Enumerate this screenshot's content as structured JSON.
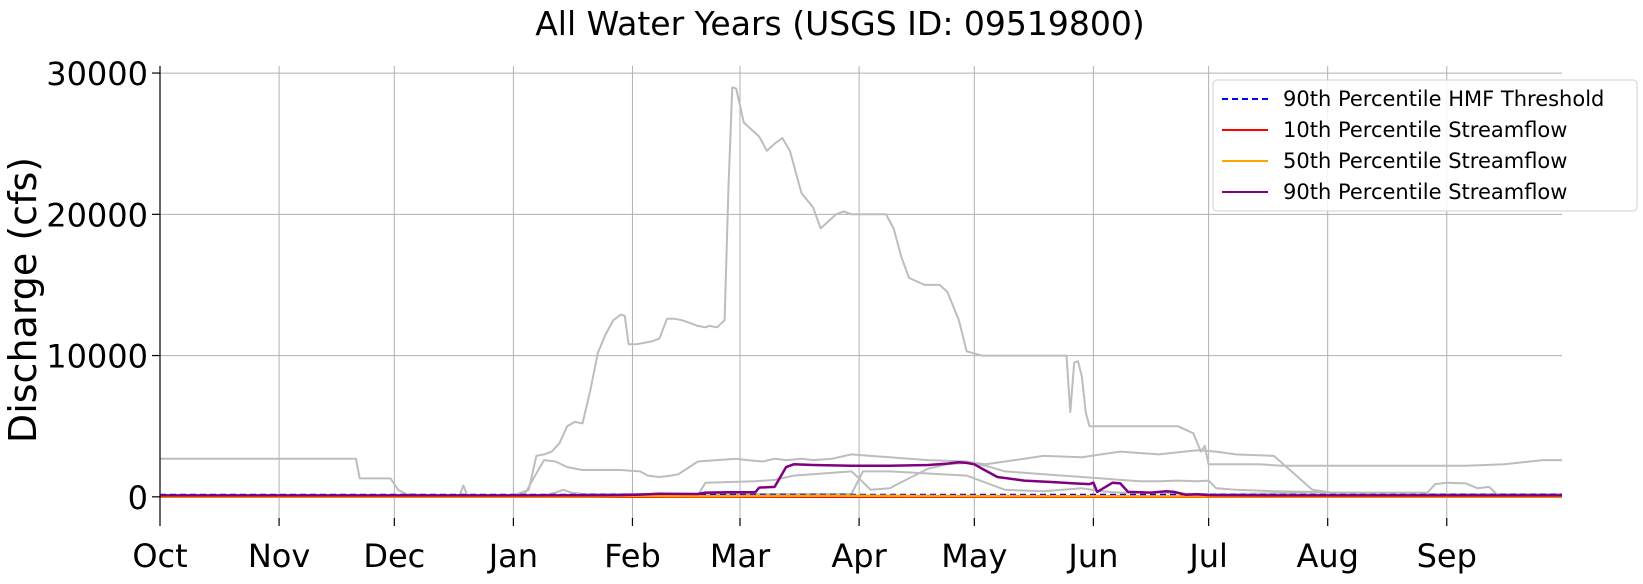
{
  "chart_data": {
    "type": "line",
    "title": "All Water Years (USGS ID: 09519800)",
    "xlabel": "",
    "ylabel": "Discharge (cfs)",
    "x_ticks": [
      "Oct",
      "Nov",
      "Dec",
      "Jan",
      "Feb",
      "Mar",
      "Apr",
      "May",
      "Jun",
      "Jul",
      "Aug",
      "Sep"
    ],
    "x_tick_days": [
      0,
      31,
      61,
      92,
      123,
      151,
      182,
      212,
      243,
      273,
      304,
      335
    ],
    "xlim": [
      0,
      365
    ],
    "ylim": [
      -1500,
      30500
    ],
    "y_ticks": [
      0,
      10000,
      20000,
      30000
    ],
    "grid": true,
    "legend_position": "top-right",
    "legend": [
      {
        "label": "90th Percentile HMF Threshold",
        "color": "#0000ff",
        "style": "dashed"
      },
      {
        "label": "10th Percentile Streamflow",
        "color": "#ff0000",
        "style": "solid"
      },
      {
        "label": "50th Percentile Streamflow",
        "color": "#ffa500",
        "style": "solid"
      },
      {
        "label": "90th Percentile Streamflow",
        "color": "#800080",
        "style": "solid"
      }
    ],
    "hmf_threshold": 150,
    "percentiles": {
      "p10": {
        "color": "#ff0000",
        "x": [
          0,
          365
        ],
        "y": [
          0,
          0
        ]
      },
      "p50": {
        "color": "#ffa500",
        "x": [
          0,
          110,
          125,
          140,
          150,
          175,
          195,
          215,
          240,
          260,
          290,
          365
        ],
        "y": [
          20,
          20,
          60,
          40,
          50,
          80,
          60,
          50,
          40,
          30,
          20,
          20
        ]
      },
      "p90": {
        "color": "#800080",
        "x": [
          0,
          92,
          115,
          120,
          125,
          130,
          140,
          142,
          148,
          155,
          156,
          160,
          163,
          165,
          170,
          180,
          190,
          200,
          205,
          208,
          210,
          212,
          214,
          218,
          225,
          232,
          238,
          242,
          243,
          244,
          248,
          250,
          252,
          258,
          262,
          264,
          267,
          270,
          273,
          290,
          365
        ],
        "y": [
          100,
          100,
          110,
          120,
          160,
          220,
          200,
          300,
          320,
          330,
          650,
          700,
          2100,
          2300,
          2250,
          2200,
          2200,
          2250,
          2350,
          2450,
          2400,
          2300,
          2000,
          1400,
          1150,
          1050,
          950,
          900,
          1000,
          350,
          1000,
          950,
          350,
          300,
          400,
          350,
          150,
          180,
          120,
          100,
          100
        ]
      }
    },
    "annual_traces": [
      {
        "color": "#bdbdbd",
        "x": [
          0,
          51,
          52,
          60,
          62,
          64,
          70,
          92,
          96,
          98,
          100,
          102,
          104,
          106,
          108,
          110,
          112,
          114,
          116,
          118,
          120,
          121,
          122,
          124,
          128,
          130,
          132,
          134,
          136,
          138,
          140,
          142,
          143,
          145,
          147,
          148,
          149,
          150,
          152,
          154,
          156,
          158,
          160,
          162,
          164,
          166,
          167,
          170,
          172,
          174,
          176,
          178,
          180,
          181,
          183,
          189,
          191,
          193,
          195,
          199,
          203,
          205,
          208,
          210,
          214,
          220,
          226,
          236,
          237,
          238,
          239,
          240,
          241,
          242,
          265,
          269,
          271,
          272,
          273,
          286,
          292,
          305,
          340,
          350,
          360,
          365
        ],
        "y": [
          2700,
          2700,
          1300,
          1300,
          500,
          200,
          100,
          100,
          500,
          2900,
          3000,
          3200,
          3800,
          5000,
          5300,
          5200,
          7500,
          10200,
          11500,
          12500,
          12900,
          12800,
          10800,
          10800,
          11000,
          11200,
          12600,
          12600,
          12500,
          12300,
          12100,
          12000,
          12100,
          12000,
          12500,
          22000,
          29000,
          28900,
          26500,
          26000,
          25500,
          24500,
          25000,
          25400,
          24500,
          22500,
          21500,
          20500,
          19000,
          19500,
          20000,
          20200,
          20000,
          20000,
          20000,
          20000,
          19000,
          17000,
          15500,
          15000,
          15000,
          14500,
          12500,
          10300,
          10000,
          10000,
          10000,
          10000,
          6000,
          9500,
          9600,
          8500,
          6000,
          5000,
          5000,
          4500,
          3200,
          3600,
          2300,
          2300,
          2200,
          2200,
          2200,
          2300,
          2600,
          2600
        ]
      },
      {
        "color": "#bdbdbd",
        "x": [
          0,
          92,
          95,
          97,
          100,
          103,
          106,
          110,
          120,
          125,
          127,
          130,
          133,
          135,
          140,
          150,
          153,
          157,
          160,
          163,
          167,
          170,
          175,
          180,
          185,
          190,
          195,
          200,
          210,
          212,
          215,
          220,
          225,
          230,
          240,
          245,
          250,
          255,
          260,
          270,
          275,
          280,
          290,
          300,
          305,
          310,
          320,
          330,
          365
        ],
        "y": [
          100,
          100,
          200,
          1200,
          2600,
          2500,
          2100,
          1900,
          1900,
          1800,
          1500,
          1400,
          1500,
          1600,
          2500,
          2700,
          2600,
          2500,
          2700,
          2600,
          2700,
          2600,
          2700,
          3000,
          2900,
          2800,
          2700,
          2600,
          2500,
          2400,
          2300,
          2500,
          2700,
          2900,
          2800,
          3000,
          3200,
          3100,
          3000,
          3300,
          3200,
          3000,
          2900,
          500,
          300,
          300,
          200,
          200,
          100
        ]
      },
      {
        "color": "#bdbdbd",
        "x": [
          0,
          100,
          110,
          140,
          142,
          155,
          160,
          165,
          180,
          182,
          185,
          190,
          192,
          195,
          200,
          205,
          210,
          215,
          220,
          225,
          230,
          235,
          240,
          245,
          250,
          255,
          260,
          265,
          270,
          273,
          275,
          280,
          290,
          300,
          305,
          330,
          332,
          335,
          340,
          343,
          346,
          348,
          365
        ],
        "y": [
          50,
          50,
          100,
          100,
          1000,
          1100,
          1200,
          1500,
          1800,
          1300,
          500,
          600,
          900,
          1300,
          2000,
          2300,
          2400,
          2200,
          1800,
          1700,
          1600,
          1500,
          1400,
          1300,
          1200,
          1100,
          1100,
          1150,
          1100,
          1150,
          600,
          500,
          400,
          350,
          300,
          300,
          900,
          1000,
          950,
          600,
          700,
          200,
          200
        ]
      },
      {
        "color": "#bdbdbd",
        "x": [
          0,
          78,
          79,
          80,
          82,
          100,
          103,
          105,
          107,
          110,
          180,
          183,
          190,
          210,
          215,
          220,
          230,
          235,
          240,
          245,
          250,
          260,
          270,
          280,
          300,
          320,
          340,
          365
        ],
        "y": [
          100,
          100,
          800,
          100,
          100,
          100,
          300,
          500,
          300,
          200,
          200,
          1800,
          1800,
          1500,
          1000,
          500,
          400,
          500,
          600,
          400,
          300,
          300,
          200,
          200,
          300,
          200,
          200,
          200
        ]
      }
    ]
  }
}
